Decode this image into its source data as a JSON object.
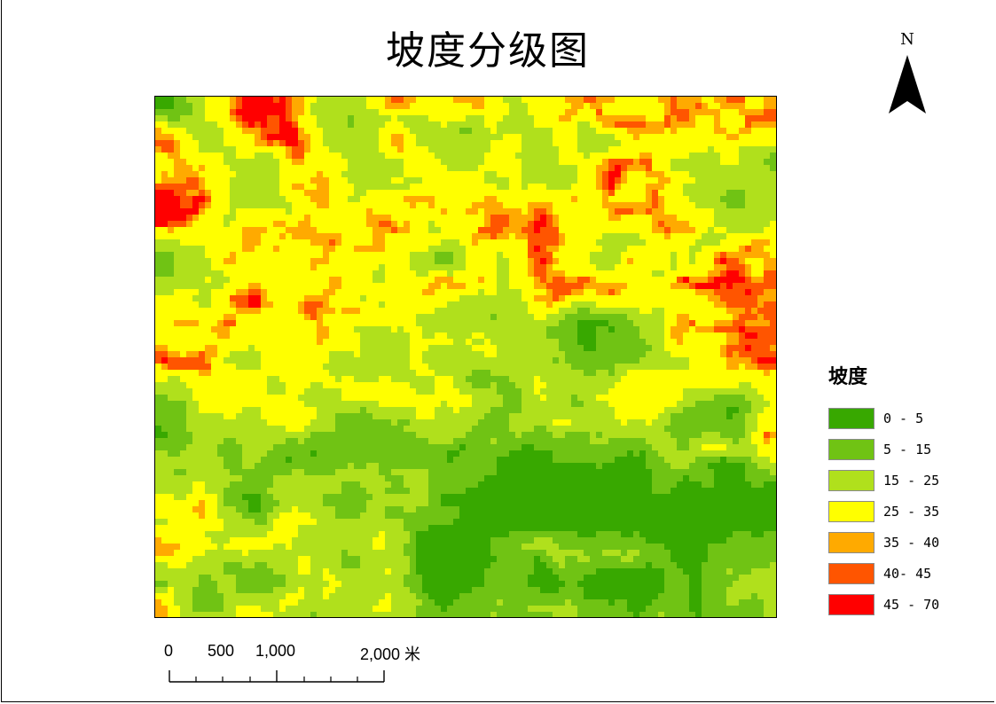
{
  "title": "坡度分级图",
  "north_arrow": {
    "label": "N",
    "icon": "north-arrow-icon"
  },
  "legend": {
    "title": "坡度",
    "items": [
      {
        "label": "0 - 5",
        "color": "#38a800"
      },
      {
        "label": "5 - 15",
        "color": "#70c314"
      },
      {
        "label": "15 - 25",
        "color": "#b0e01c"
      },
      {
        "label": "25 - 35",
        "color": "#ffff00"
      },
      {
        "label": "35 - 40",
        "color": "#ffaa00"
      },
      {
        "label": "40- 45",
        "color": "#ff5500"
      },
      {
        "label": "45 - 70",
        "color": "#ff0000"
      }
    ]
  },
  "scale_bar": {
    "labels": [
      "0",
      "500",
      "1,000",
      "2,000 米"
    ],
    "values": [
      0,
      500,
      1000,
      2000
    ],
    "unit": "米"
  }
}
